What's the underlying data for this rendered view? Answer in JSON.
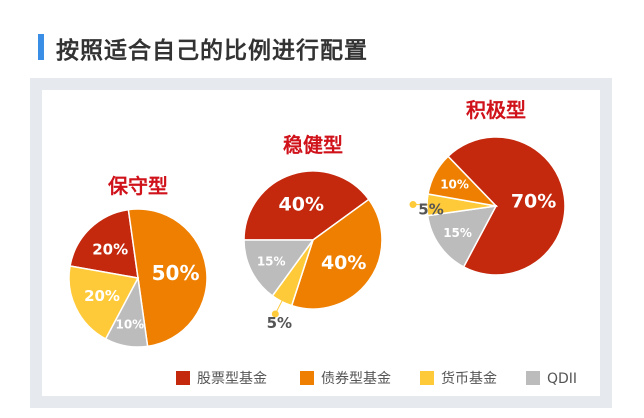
{
  "page": {
    "title": "按照适合自己的比例进行配置"
  },
  "colors": {
    "stock": "#c4280d",
    "bond": "#ee7f00",
    "money": "#ffca39",
    "qdii": "#bcbcbc",
    "panel": "#e6e9ee",
    "accent": "#3a8ee6",
    "chart_title": "#d0121b",
    "inside_label": "#ffffff",
    "outside_label": "#555555",
    "legend_text": "#555555"
  },
  "legend": [
    {
      "key": "stock",
      "label": "股票型基金"
    },
    {
      "key": "bond",
      "label": "债券型基金"
    },
    {
      "key": "money",
      "label": "货币基金"
    },
    {
      "key": "qdii",
      "label": "QDII"
    }
  ],
  "chart_data": [
    {
      "type": "pie",
      "title": "保守型",
      "slices": [
        {
          "key": "stock",
          "value": 20,
          "label": "20%"
        },
        {
          "key": "bond",
          "value": 50,
          "label": "50%"
        },
        {
          "key": "qdii",
          "value": 10,
          "label": "10%"
        },
        {
          "key": "money",
          "value": 20,
          "label": "20%"
        }
      ]
    },
    {
      "type": "pie",
      "title": "稳健型",
      "slices": [
        {
          "key": "stock",
          "value": 40,
          "label": "40%"
        },
        {
          "key": "bond",
          "value": 40,
          "label": "40%"
        },
        {
          "key": "money",
          "value": 5,
          "label": "5%"
        },
        {
          "key": "qdii",
          "value": 15,
          "label": "15%"
        }
      ]
    },
    {
      "type": "pie",
      "title": "积极型",
      "slices": [
        {
          "key": "stock",
          "value": 70,
          "label": "70%"
        },
        {
          "key": "qdii",
          "value": 15,
          "label": "15%"
        },
        {
          "key": "money",
          "value": 5,
          "label": "5%"
        },
        {
          "key": "bond",
          "value": 10,
          "label": "10%"
        }
      ]
    }
  ]
}
